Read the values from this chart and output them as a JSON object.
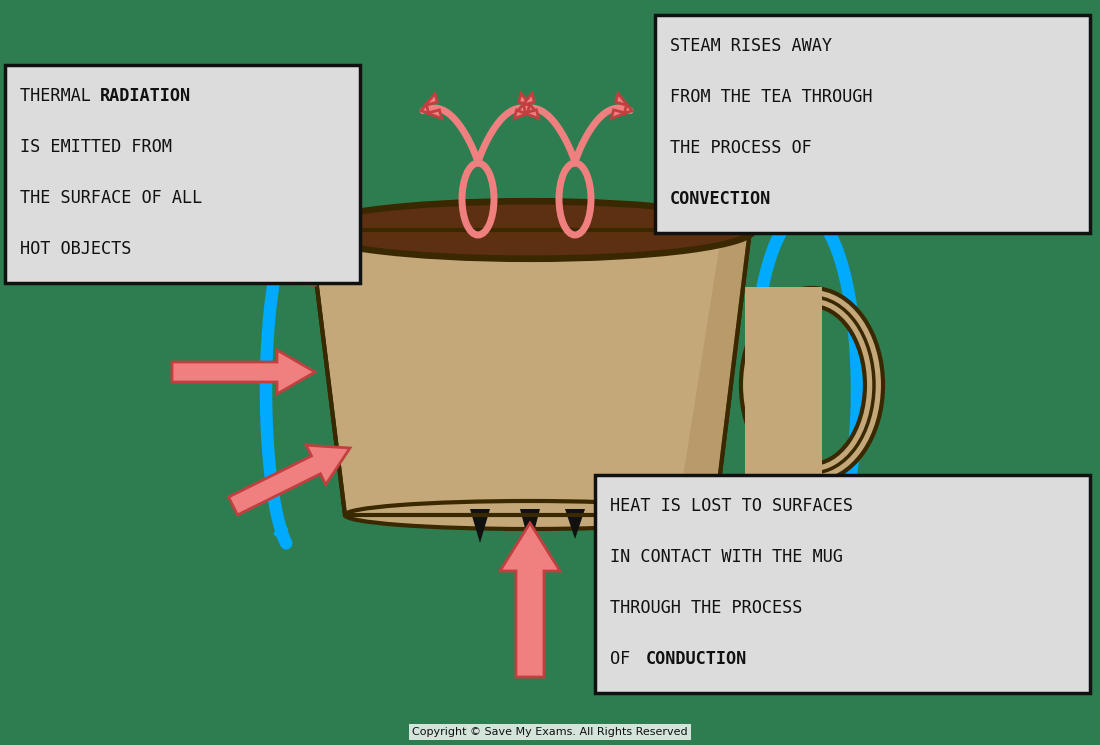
{
  "bg_color": "#2e7d50",
  "mug_body_color": "#c4a87a",
  "mug_shadow_color": "#b09060",
  "mug_dark_edge": "#3a2800",
  "tea_color": "#5c3010",
  "arrow_pink": "#f08080",
  "arrow_pink_edge": "#c04040",
  "blue_arc": "#00aaff",
  "box_bg": "#dcdcdc",
  "box_edge": "#111111",
  "text_color": "#111111",
  "copyright": "Copyright © Save My Exams. All Rights Reserved",
  "rad_lines": [
    "THERMAL  RADIATION",
    "IS EMITTED FROM",
    "THE SURFACE OF ALL",
    "HOT OBJECTS"
  ],
  "rad_bold": "RADIATION",
  "conv_lines": [
    "STEAM RISES AWAY",
    "FROM THE TEA THROUGH",
    "THE PROCESS OF",
    "CONVECTION"
  ],
  "conv_bold": "CONVECTION",
  "cond_lines": [
    "HEAT IS LOST TO SURFACES",
    "IN CONTACT WITH THE MUG",
    "THROUGH THE PROCESS",
    "OF  CONDUCTION"
  ],
  "cond_bold": "CONDUCTION"
}
